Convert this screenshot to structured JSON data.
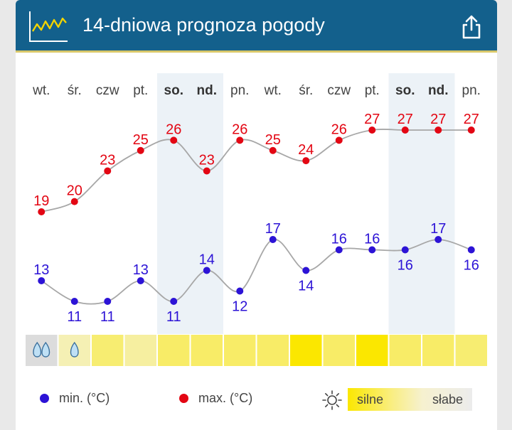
{
  "header": {
    "title": "14-dniowa prognoza pogody"
  },
  "legend": {
    "min_label": "min. (°C)",
    "max_label": "max. (°C)",
    "sun_strong": "silne",
    "sun_weak": "słabe"
  },
  "colors": {
    "header": "#13608c",
    "max": "#e30613",
    "min": "#2c13d6",
    "line": "#a7a7a7",
    "weekend": "#ecf2f7"
  },
  "chart_data": {
    "type": "line",
    "categories": [
      "wt.",
      "śr.",
      "czw",
      "pt.",
      "so.",
      "nd.",
      "pn.",
      "wt.",
      "śr.",
      "czw",
      "pt.",
      "so.",
      "nd.",
      "pn."
    ],
    "weekend": [
      false,
      false,
      false,
      false,
      true,
      true,
      false,
      false,
      false,
      false,
      false,
      true,
      true,
      false
    ],
    "series": [
      {
        "name": "max. (°C)",
        "values": [
          19,
          20,
          23,
          25,
          26,
          23,
          26,
          25,
          24,
          26,
          27,
          27,
          27,
          27
        ]
      },
      {
        "name": "min. (°C)",
        "values": [
          13,
          11,
          11,
          13,
          11,
          14,
          12,
          17,
          14,
          16,
          16,
          16,
          17,
          16
        ]
      }
    ],
    "sun_strength": [
      0.05,
      0.12,
      0.45,
      0.22,
      0.5,
      0.5,
      0.5,
      0.5,
      1.0,
      0.5,
      1.0,
      0.5,
      0.5,
      0.45
    ],
    "precip_icons": [
      2,
      1,
      0,
      0,
      0,
      0,
      0,
      0,
      0,
      0,
      0,
      0,
      0,
      0
    ]
  }
}
